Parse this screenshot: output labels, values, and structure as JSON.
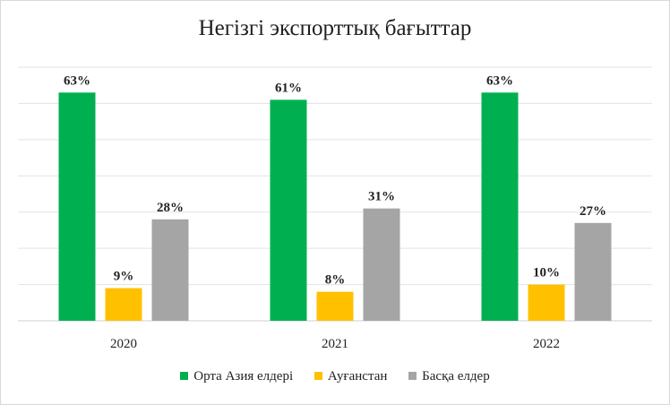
{
  "chart_data": {
    "type": "bar",
    "title": "Негізгі экспорттық бағыттар",
    "categories": [
      "2020",
      "2021",
      "2022"
    ],
    "series": [
      {
        "name": "Орта Азия елдері",
        "values": [
          63,
          61,
          63
        ],
        "labels": [
          "63%",
          "61%",
          "63%"
        ],
        "color": "#00b050"
      },
      {
        "name": "Ауғанстан",
        "values": [
          9,
          8,
          10
        ],
        "labels": [
          "9%",
          "8%",
          "10%"
        ],
        "color": "#ffc000"
      },
      {
        "name": "Басқа елдер",
        "values": [
          28,
          31,
          27
        ],
        "labels": [
          "28%",
          "31%",
          "27%"
        ],
        "color": "#a5a5a5"
      }
    ],
    "ylim": [
      0,
      70
    ],
    "grid": true,
    "legend_position": "bottom"
  }
}
